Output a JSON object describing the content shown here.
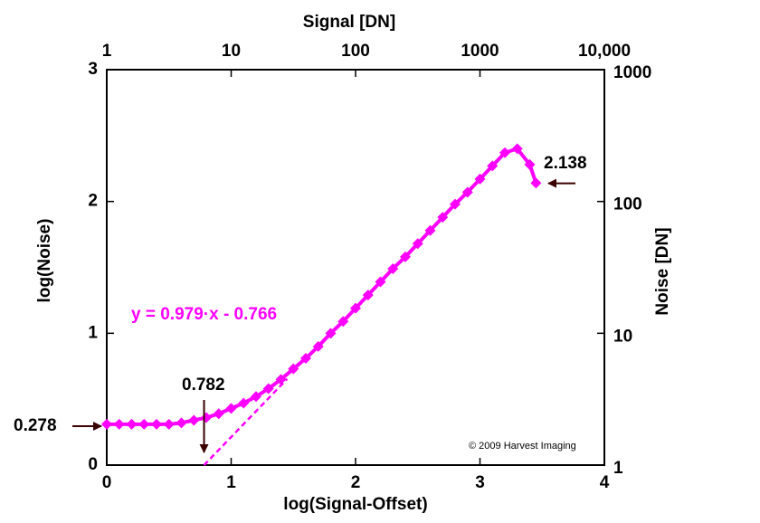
{
  "chart_data": {
    "type": "line",
    "title": "Signal [DN]",
    "xlabel": "log(Signal-Offset)",
    "ylabel": "log(Noise)",
    "y2label": "Noise [DN]",
    "x": [
      0,
      0.1,
      0.2,
      0.3,
      0.4,
      0.5,
      0.6,
      0.7,
      0.8,
      0.9,
      1.0,
      1.1,
      1.2,
      1.3,
      1.4,
      1.5,
      1.6,
      1.7,
      1.8,
      1.9,
      2.0,
      2.1,
      2.2,
      2.3,
      2.4,
      2.5,
      2.6,
      2.7,
      2.8,
      2.9,
      3.0,
      3.1,
      3.2,
      3.3,
      3.4,
      3.45
    ],
    "series": [
      {
        "name": "log(Noise)",
        "color": "#ff00ff",
        "values": [
          0.31,
          0.31,
          0.31,
          0.31,
          0.31,
          0.31,
          0.32,
          0.34,
          0.36,
          0.39,
          0.43,
          0.47,
          0.52,
          0.58,
          0.65,
          0.73,
          0.81,
          0.9,
          1.0,
          1.09,
          1.19,
          1.29,
          1.39,
          1.49,
          1.58,
          1.68,
          1.78,
          1.88,
          1.98,
          2.07,
          2.17,
          2.27,
          2.37,
          2.4,
          2.28,
          2.14
        ]
      }
    ],
    "xlim": [
      0,
      4
    ],
    "xticks": [
      0,
      1,
      2,
      3,
      4
    ],
    "ylim": [
      0,
      3
    ],
    "yticks": [
      0,
      1,
      2,
      3
    ],
    "x2lim": [
      1,
      10000
    ],
    "x2ticks": [
      1,
      10,
      100,
      1000,
      {
        "value": 10000,
        "label": "10,000"
      }
    ],
    "y2lim": [
      1,
      1000
    ],
    "y2ticks": [
      1,
      10,
      100,
      1000
    ],
    "log_scale_secondary": true,
    "fit": {
      "label": "y = 0.979·x - 0.766",
      "slope": 0.979,
      "intercept": -0.766,
      "x_range": [
        0.782,
        1.45
      ]
    },
    "annotations": [
      {
        "text": "0.278",
        "value": 0.278
      },
      {
        "text": "0.782",
        "value": 0.782
      },
      {
        "text": "2.138",
        "value": 2.138
      }
    ],
    "copyright": "© 2009 Harvest Imaging"
  }
}
